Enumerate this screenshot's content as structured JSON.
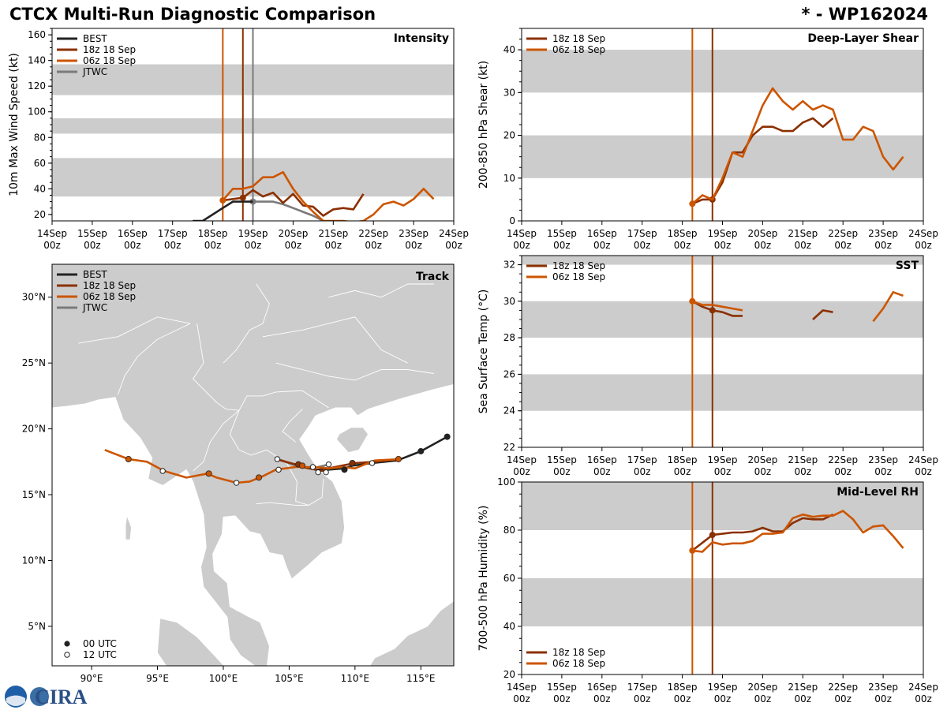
{
  "header": {
    "title": "CTCX Multi-Run Diagnostic Comparison",
    "storm": "* - WP162024"
  },
  "colors": {
    "best": "#222222",
    "run18": "#8B3000",
    "run06": "#CC5500",
    "jtwc": "#7a7a7a",
    "band": "#cccccc",
    "land": "#cccccc"
  },
  "legend": {
    "best": "BEST",
    "run18": "18z 18 Sep",
    "run06": "06z 18 Sep",
    "jtwc": "JTWC",
    "utc00": "00 UTC",
    "utc12": "12 UTC"
  },
  "time_axis": {
    "days": [
      "14Sep",
      "15Sep",
      "16Sep",
      "17Sep",
      "18Sep",
      "19Sep",
      "20Sep",
      "21Sep",
      "22Sep",
      "23Sep",
      "24Sep"
    ],
    "hour": "00z",
    "init_times": {
      "run06": 18.25,
      "run18": 18.75,
      "jtwc": 19.0
    }
  },
  "chart_data": [
    {
      "type": "line",
      "id": "intensity",
      "title": "Intensity",
      "ylabel": "10m Max Wind Speed (kt)",
      "ylim": [
        15,
        165
      ],
      "yticks": [
        20,
        40,
        60,
        80,
        100,
        120,
        140,
        160
      ],
      "bands": [
        [
          34,
          64
        ],
        [
          83,
          95
        ],
        [
          113,
          137
        ]
      ],
      "series": [
        {
          "name": "BEST",
          "key": "best",
          "x": [
            17.5,
            17.75,
            18.0,
            18.25,
            18.5,
            18.75,
            19.0
          ],
          "y": [
            15,
            15,
            20,
            25,
            30,
            30,
            30
          ]
        },
        {
          "name": "18z 18 Sep",
          "key": "run18",
          "marker_at": 18.75,
          "x": [
            18.25,
            18.5,
            18.75,
            19.0,
            19.25,
            19.5,
            19.75,
            20.0,
            20.25,
            20.5,
            20.75,
            21.0,
            21.25,
            21.5,
            21.75
          ],
          "y": [
            31,
            32,
            33,
            39,
            34,
            37,
            29,
            36,
            27,
            26,
            19,
            24,
            25,
            24,
            36
          ]
        },
        {
          "name": "06z 18 Sep",
          "key": "run06",
          "marker_at": 18.25,
          "x": [
            18.25,
            18.5,
            18.75,
            19.0,
            19.25,
            19.5,
            19.75,
            20.0,
            20.25,
            20.5,
            20.75,
            21.0,
            21.25,
            21.5,
            21.75,
            22.0,
            22.25,
            22.5,
            22.75,
            23.0,
            23.25,
            23.5
          ],
          "y": [
            31,
            40,
            40,
            42,
            49,
            49,
            53,
            40,
            30,
            22,
            15,
            15,
            15,
            14,
            15,
            20,
            28,
            30,
            27,
            32,
            40,
            32
          ]
        },
        {
          "name": "JTWC",
          "key": "jtwc",
          "marker_at": 19.0,
          "x": [
            19.0,
            19.25,
            19.5,
            19.75,
            20.0,
            20.25,
            20.5,
            20.75
          ],
          "y": [
            30,
            30,
            30,
            28,
            25,
            22,
            19,
            15
          ]
        }
      ]
    },
    {
      "type": "line",
      "id": "shear",
      "title": "Deep-Layer Shear",
      "ylabel": "200-850 hPa Shear (kt)",
      "ylim": [
        0,
        45
      ],
      "yticks": [
        0,
        10,
        20,
        30,
        40
      ],
      "bands": [
        [
          10,
          20
        ],
        [
          30,
          40
        ]
      ],
      "series": [
        {
          "name": "18z 18 Sep",
          "key": "run18",
          "marker_at": 18.75,
          "x": [
            18.25,
            18.5,
            18.75,
            19.0,
            19.25,
            19.5,
            19.75,
            20.0,
            20.25,
            20.5,
            20.75,
            21.0,
            21.25,
            21.5,
            21.75
          ],
          "y": [
            4,
            5,
            5,
            9,
            16,
            16,
            20,
            22,
            22,
            21,
            21,
            23,
            24,
            22,
            24
          ]
        },
        {
          "name": "06z 18 Sep",
          "key": "run06",
          "marker_at": 18.25,
          "x": [
            18.25,
            18.5,
            18.75,
            19.0,
            19.25,
            19.5,
            19.75,
            20.0,
            20.25,
            20.5,
            20.75,
            21.0,
            21.25,
            21.5,
            21.75,
            22.0,
            22.25,
            22.5,
            22.75,
            23.0,
            23.25,
            23.5
          ],
          "y": [
            4,
            6,
            5,
            10,
            16,
            15,
            21,
            27,
            31,
            28,
            26,
            28,
            26,
            27,
            26,
            19,
            19,
            22,
            21,
            15,
            12,
            15
          ]
        }
      ]
    },
    {
      "type": "line",
      "id": "sst",
      "title": "SST",
      "ylabel": "Sea Surface Temp (°C)",
      "ylim": [
        22,
        32.5
      ],
      "yticks": [
        22,
        24,
        26,
        28,
        30,
        32
      ],
      "bands": [
        [
          24,
          26
        ],
        [
          28,
          30
        ],
        [
          32,
          34
        ]
      ],
      "series": [
        {
          "name": "18z 18 Sep",
          "key": "run18",
          "marker_at": 18.75,
          "segments": [
            {
              "x": [
                18.25,
                18.5,
                18.75,
                19.0,
                19.25,
                19.5
              ],
              "y": [
                30.0,
                29.7,
                29.5,
                29.4,
                29.2,
                29.2
              ]
            },
            {
              "x": [
                21.25,
                21.5,
                21.75
              ],
              "y": [
                29.0,
                29.5,
                29.4
              ]
            }
          ]
        },
        {
          "name": "06z 18 Sep",
          "key": "run06",
          "marker_at": 18.25,
          "segments": [
            {
              "x": [
                18.25,
                18.5,
                18.75,
                19.0,
                19.25,
                19.5
              ],
              "y": [
                30.0,
                29.8,
                29.8,
                29.7,
                29.6,
                29.5
              ]
            },
            {
              "x": [
                22.75,
                23.0,
                23.25,
                23.5
              ],
              "y": [
                28.9,
                29.6,
                30.5,
                30.3
              ]
            }
          ]
        }
      ]
    },
    {
      "type": "line",
      "id": "rh",
      "title": "Mid-Level RH",
      "ylabel": "700-500 hPa Humidity (%)",
      "ylim": [
        20,
        100
      ],
      "yticks": [
        20,
        40,
        60,
        80,
        100
      ],
      "bands": [
        [
          40,
          60
        ],
        [
          80,
          100
        ]
      ],
      "series": [
        {
          "name": "18z 18 Sep",
          "key": "run18",
          "marker_at": 18.75,
          "x": [
            18.25,
            18.75,
            19.0,
            19.25,
            19.5,
            19.75,
            20.0,
            20.25,
            20.5,
            20.75,
            21.0,
            21.25,
            21.5,
            21.75
          ],
          "y": [
            71.5,
            78,
            78.5,
            79,
            79,
            79.5,
            81,
            79.5,
            79.5,
            83,
            85,
            84.5,
            84.5,
            86.5
          ]
        },
        {
          "name": "06z 18 Sep",
          "key": "run06",
          "marker_at": 18.25,
          "x": [
            18.25,
            18.5,
            18.75,
            19.0,
            19.25,
            19.5,
            19.75,
            20.0,
            20.25,
            20.5,
            20.75,
            21.0,
            21.25,
            21.5,
            21.75,
            22.0,
            22.25,
            22.5,
            22.75,
            23.0,
            23.25,
            23.5
          ],
          "y": [
            71.5,
            71,
            75,
            74,
            74.5,
            74.5,
            75.5,
            78.5,
            78.5,
            79,
            85,
            86.5,
            85.5,
            86,
            86,
            88,
            84.5,
            79,
            81.5,
            82,
            77.5,
            72.5
          ]
        }
      ]
    },
    {
      "type": "scatter",
      "id": "track",
      "title": "Track",
      "xlim": [
        87,
        117.5
      ],
      "ylim": [
        2,
        32.5
      ],
      "xticks": [
        90,
        95,
        100,
        105,
        110,
        115
      ],
      "xtick_labels": [
        "90°E",
        "95°E",
        "100°E",
        "105°E",
        "110°E",
        "115°E"
      ],
      "yticks": [
        5,
        10,
        15,
        20,
        25,
        30
      ],
      "ytick_labels": [
        "5°N",
        "10°N",
        "15°N",
        "20°N",
        "25°N",
        "30°N"
      ],
      "series": [
        {
          "name": "BEST",
          "key": "best",
          "lon": [
            117.0,
            115.0,
            113.2,
            111.3,
            109.8,
            109.2,
            108.0,
            107.0
          ],
          "lat": [
            19.4,
            18.3,
            17.6,
            17.4,
            17.2,
            17.0,
            16.9,
            16.9
          ],
          "dots00": [
            [
              117.0,
              19.4
            ],
            [
              115.0,
              18.3
            ],
            [
              109.2,
              16.9
            ]
          ],
          "dots12": [
            [
              111.3,
              17.4
            ]
          ]
        },
        {
          "name": "18z 18 Sep",
          "key": "run18",
          "lon": [
            113.4,
            111.5,
            110.0,
            109.0,
            108.0,
            107.5,
            107.0,
            106.5,
            106.0,
            105.5,
            104.0
          ],
          "lat": [
            17.7,
            17.5,
            17.4,
            17.2,
            17.0,
            16.8,
            16.9,
            17.0,
            17.1,
            17.3,
            17.7
          ],
          "dots00": [
            [
              109.8,
              17.4
            ],
            [
              105.7,
              17.3
            ]
          ],
          "dots12": [
            [
              108.0,
              17.3
            ],
            [
              104.1,
              17.7
            ]
          ]
        },
        {
          "name": "06z 18 Sep",
          "key": "run06",
          "lon": [
            113.4,
            111.5,
            110.0,
            109.0,
            108.0,
            107.0,
            105.5,
            104.0,
            103.0,
            102.0,
            101.0,
            99.5,
            98.8,
            97.2,
            95.5,
            94.2,
            92.8,
            91.0
          ],
          "lat": [
            17.7,
            17.6,
            17.0,
            17.1,
            17.0,
            17.1,
            17.1,
            16.9,
            16.4,
            16.0,
            15.9,
            16.3,
            16.6,
            16.3,
            16.8,
            17.5,
            17.7,
            18.4
          ],
          "dots00": [
            [
              113.3,
              17.7
            ],
            [
              106.0,
              17.2
            ],
            [
              102.7,
              16.3
            ],
            [
              98.9,
              16.6
            ],
            [
              92.8,
              17.7
            ]
          ],
          "dots12": [
            [
              107.8,
              16.7
            ],
            [
              104.2,
              16.9
            ],
            [
              101.0,
              15.9
            ],
            [
              95.4,
              16.8
            ]
          ]
        },
        {
          "name": "JTWC",
          "key": "jtwc",
          "lon": [
            108.0,
            107.2,
            106.5,
            105.5,
            104.2
          ],
          "lat": [
            17.3,
            17.1,
            17.0,
            17.2,
            17.7
          ],
          "dots00": [],
          "dots12": [
            [
              107.2,
              16.7
            ],
            [
              106.8,
              17.1
            ]
          ]
        }
      ]
    }
  ]
}
